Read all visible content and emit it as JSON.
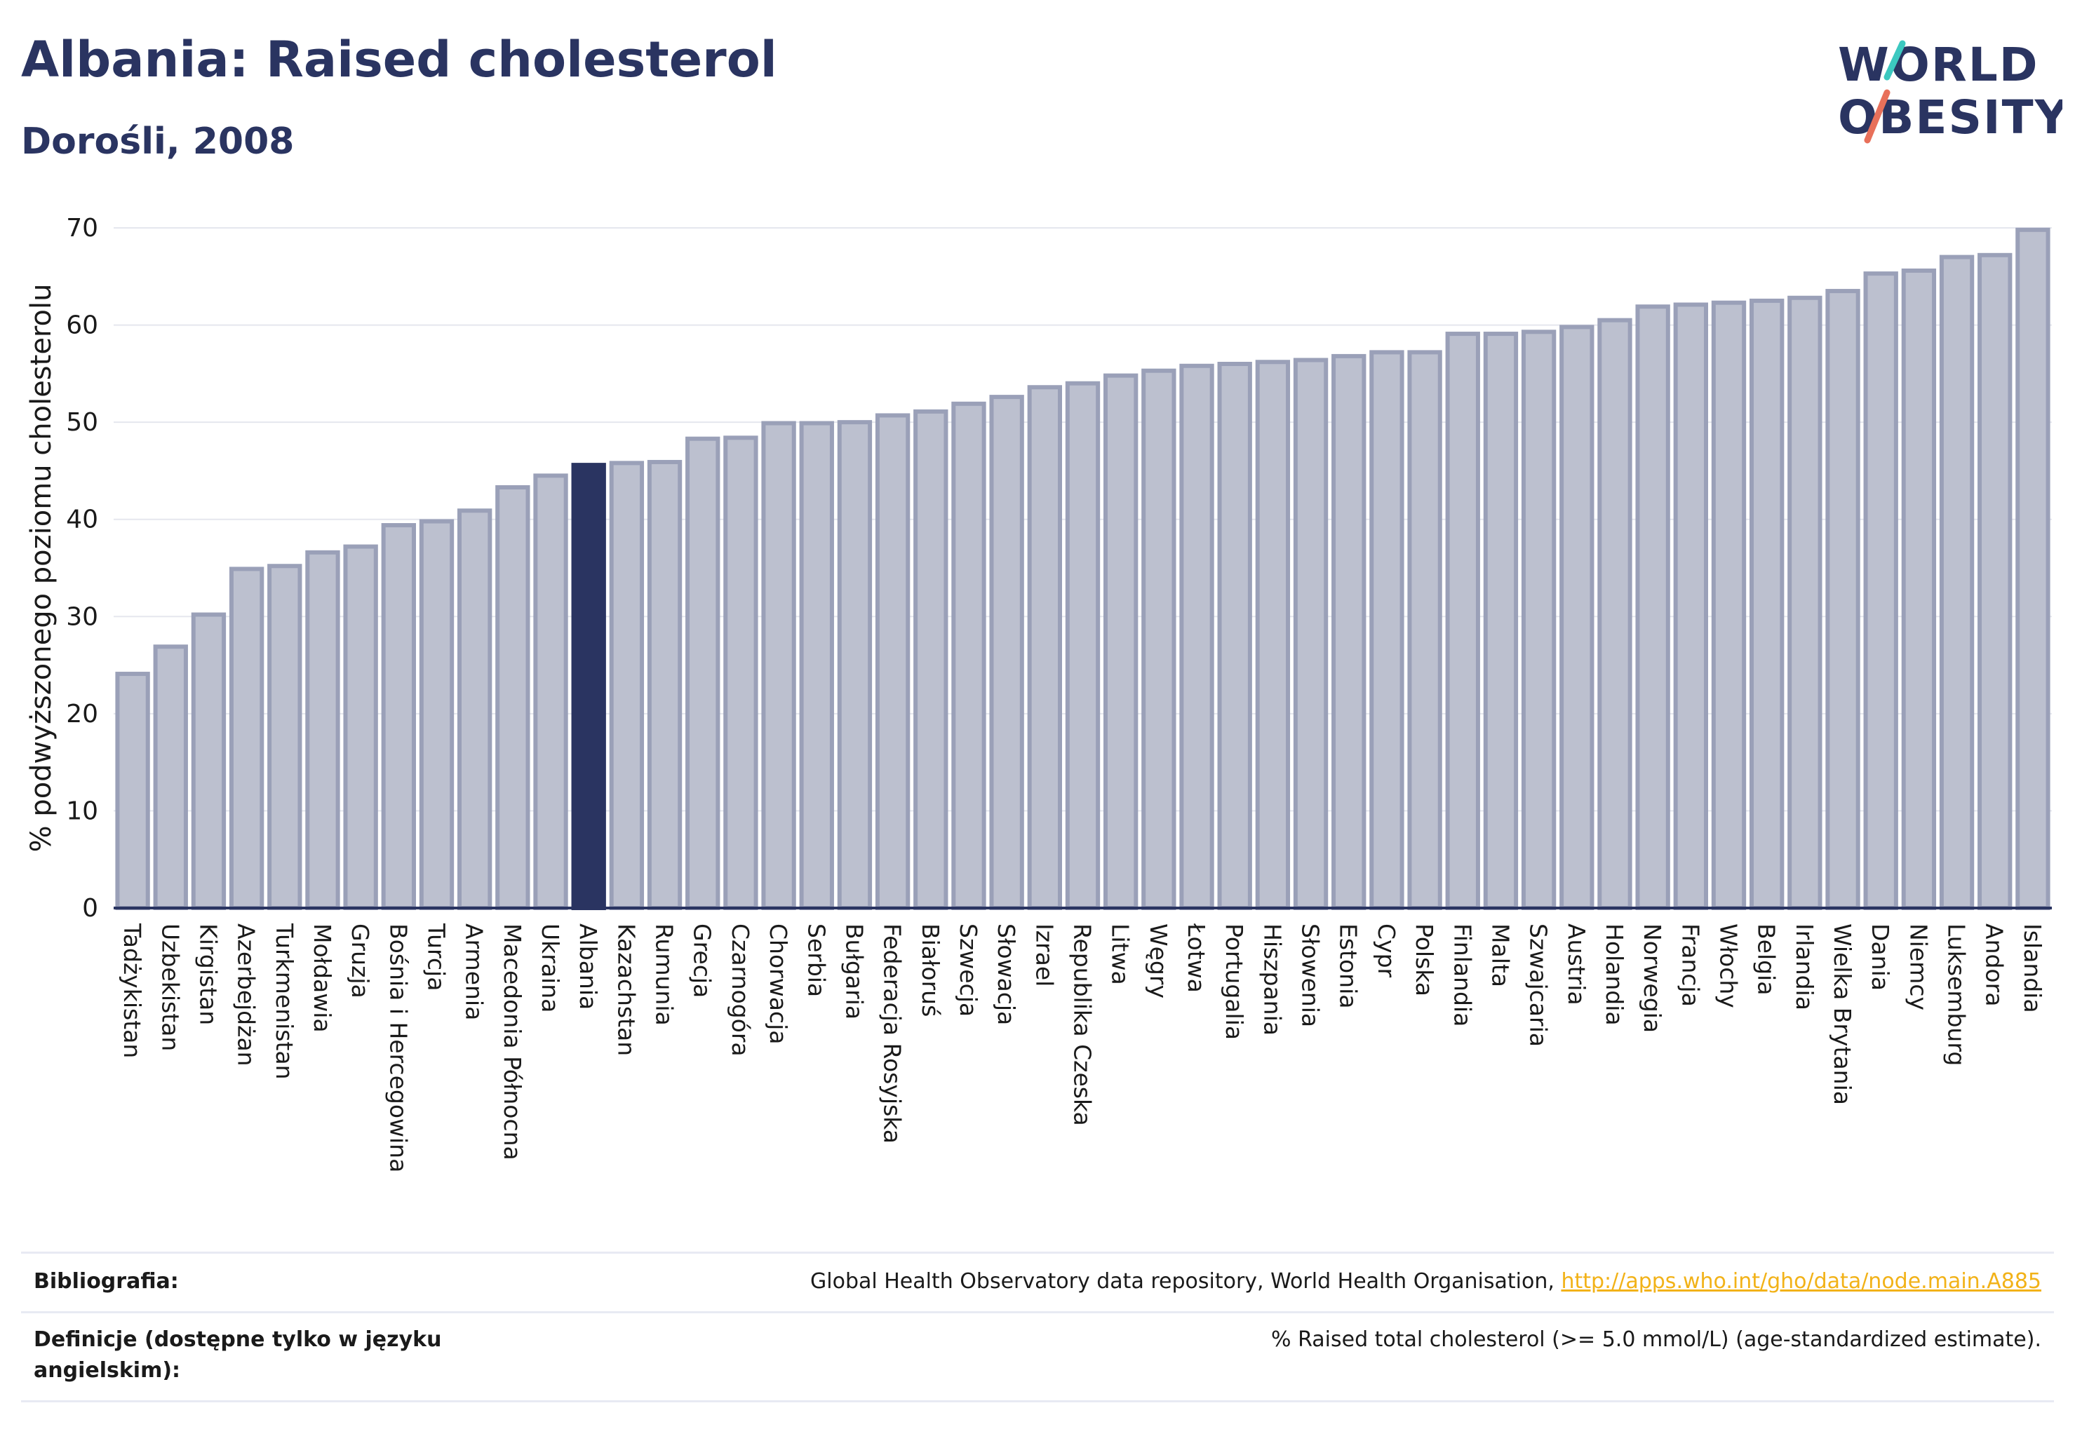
{
  "header": {
    "title": "Albania: Raised cholesterol",
    "subtitle": "Dorośli, 2008"
  },
  "logo": {
    "line1": "WORLD",
    "line2": "OBESITY",
    "accent_colors": [
      "#3cc8c0",
      "#e8705a"
    ]
  },
  "colors": {
    "bar": "#bcc0cf",
    "bar_border": "#9aa0b8",
    "highlight": "#2a3461",
    "grid": "#e5e7ee",
    "axis": "#2a3461"
  },
  "chart_data": {
    "type": "bar",
    "title": "Albania: Raised cholesterol",
    "subtitle": "Dorośli, 2008",
    "xlabel": "",
    "ylabel": "% podwyższonego poziomu cholesterolu",
    "ylim": [
      0,
      70
    ],
    "yticks": [
      0,
      10,
      20,
      30,
      40,
      50,
      60,
      70
    ],
    "grid": true,
    "highlight": "Albania",
    "categories": [
      "Tadżykistan",
      "Uzbekistan",
      "Kirgistan",
      "Azerbejdżan",
      "Turkmenistan",
      "Mołdawia",
      "Gruzja",
      "Bośnia i Hercegowina",
      "Turcja",
      "Armenia",
      "Macedonia Północna",
      "Ukraina",
      "Albania",
      "Kazachstan",
      "Rumunia",
      "Grecja",
      "Czarnogóra",
      "Chorwacja",
      "Serbia",
      "Bułgaria",
      "Federacja Rosyjska",
      "Białoruś",
      "Szwecja",
      "Słowacja",
      "Izrael",
      "Republika Czeska",
      "Litwa",
      "Węgry",
      "Łotwa",
      "Portugalia",
      "Hiszpania",
      "Słowenia",
      "Estonia",
      "Cypr",
      "Polska",
      "Finlandia",
      "Malta",
      "Szwajcaria",
      "Austria",
      "Holandia",
      "Norwegia",
      "Francja",
      "Włochy",
      "Belgia",
      "Irlandia",
      "Wielka Brytania",
      "Dania",
      "Niemcy",
      "Luksemburg",
      "Andora",
      "Islandia"
    ],
    "values": [
      24.1,
      26.9,
      30.2,
      34.9,
      35.2,
      36.6,
      37.2,
      39.4,
      39.8,
      40.9,
      43.3,
      44.5,
      45.6,
      45.8,
      45.9,
      48.3,
      48.4,
      49.9,
      49.9,
      50.0,
      50.7,
      51.1,
      51.9,
      52.6,
      53.6,
      54.0,
      54.8,
      55.3,
      55.8,
      56.0,
      56.2,
      56.4,
      56.8,
      57.2,
      57.2,
      59.1,
      59.1,
      59.3,
      59.8,
      60.5,
      61.9,
      62.1,
      62.3,
      62.5,
      62.8,
      63.5,
      65.3,
      65.6,
      67.0,
      67.2,
      69.8
    ]
  },
  "footer": {
    "bibliography_label": "Bibliografia:",
    "bibliography_text": "Global Health Observatory data repository, World Health Organisation, ",
    "bibliography_link": "http://apps.who.int/gho/data/node.main.A885",
    "definitions_label": "Definicje (dostępne tylko w języku angielskim):",
    "definitions_text": "% Raised total cholesterol (>= 5.0 mmol/L) (age-standardized estimate)."
  }
}
